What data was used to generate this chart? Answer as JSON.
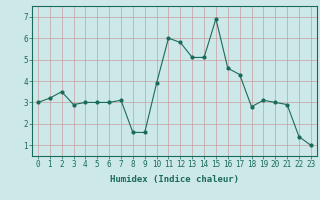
{
  "x": [
    0,
    1,
    2,
    3,
    4,
    5,
    6,
    7,
    8,
    9,
    10,
    11,
    12,
    13,
    14,
    15,
    16,
    17,
    18,
    19,
    20,
    21,
    22,
    23
  ],
  "y": [
    3.0,
    3.2,
    3.5,
    2.9,
    3.0,
    3.0,
    3.0,
    3.1,
    1.6,
    1.6,
    3.9,
    6.0,
    5.8,
    5.1,
    5.1,
    6.9,
    4.6,
    4.3,
    2.8,
    3.1,
    3.0,
    2.9,
    1.4,
    1.0
  ],
  "line_color": "#1a6b5a",
  "marker": "o",
  "marker_size": 2,
  "bg_color": "#cde8e8",
  "grid_color": "#c8a0a0",
  "xlabel": "Humidex (Indice chaleur)",
  "ylim": [
    0.5,
    7.5
  ],
  "xlim": [
    -0.5,
    23.5
  ],
  "yticks": [
    1,
    2,
    3,
    4,
    5,
    6,
    7
  ],
  "xticks": [
    0,
    1,
    2,
    3,
    4,
    5,
    6,
    7,
    8,
    9,
    10,
    11,
    12,
    13,
    14,
    15,
    16,
    17,
    18,
    19,
    20,
    21,
    22,
    23
  ],
  "title_fontsize": 7,
  "label_fontsize": 6.5,
  "tick_fontsize": 5.5
}
